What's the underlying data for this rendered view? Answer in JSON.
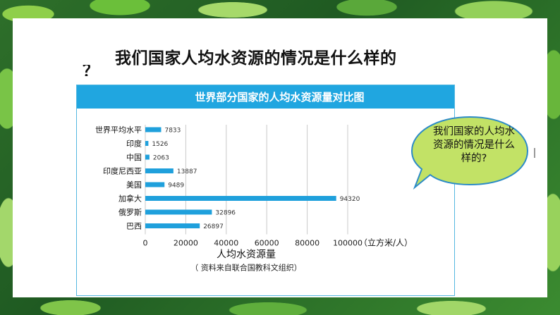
{
  "slide": {
    "title": "我们国家人均水资源的情况是什么样的",
    "title_overflow": "？",
    "callout_text": "我们国家的人均水资源的情况是什么样的?"
  },
  "chart_data": {
    "type": "bar",
    "orientation": "horizontal",
    "title": "世界部分国家的人均水资源量对比图",
    "categories": [
      "世界平均水平",
      "印度",
      "中国",
      "印度尼西亚",
      "美国",
      "加拿大",
      "俄罗斯",
      "巴西"
    ],
    "values": [
      7833,
      1526,
      2063,
      13887,
      9489,
      94320,
      32896,
      26897
    ],
    "xlabel": "人均水资源量",
    "unit": "（立方米/人）",
    "xticks": [
      0,
      20000,
      40000,
      60000,
      80000,
      100000
    ],
    "xlim": [
      0,
      100000
    ],
    "source": "（ 资料来自联合国教科文组织）",
    "grid": "vertical",
    "bar_color": "#1fa0dc"
  }
}
